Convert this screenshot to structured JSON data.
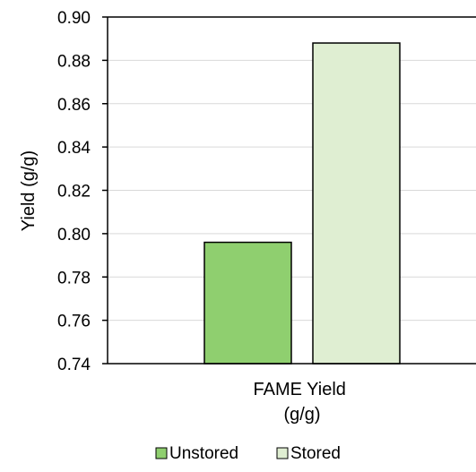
{
  "chart_data": {
    "type": "bar",
    "title": "",
    "xlabel": "",
    "ylabel": "Yield (g/g)",
    "categories": [
      "FAME Yield\n(g/g)"
    ],
    "category_label_lines": [
      "FAME Yield",
      "(g/g)"
    ],
    "series": [
      {
        "name": "Unstored",
        "values": [
          0.796
        ],
        "color": "#8fcf6f"
      },
      {
        "name": "Stored",
        "values": [
          0.888
        ],
        "color": "#dfeed2"
      }
    ],
    "ylim": [
      0.74,
      0.9
    ],
    "yticks": [
      "0.74",
      "0.76",
      "0.78",
      "0.80",
      "0.82",
      "0.84",
      "0.86",
      "0.88",
      "0.90"
    ],
    "grid": true,
    "legend_position": "bottom"
  }
}
